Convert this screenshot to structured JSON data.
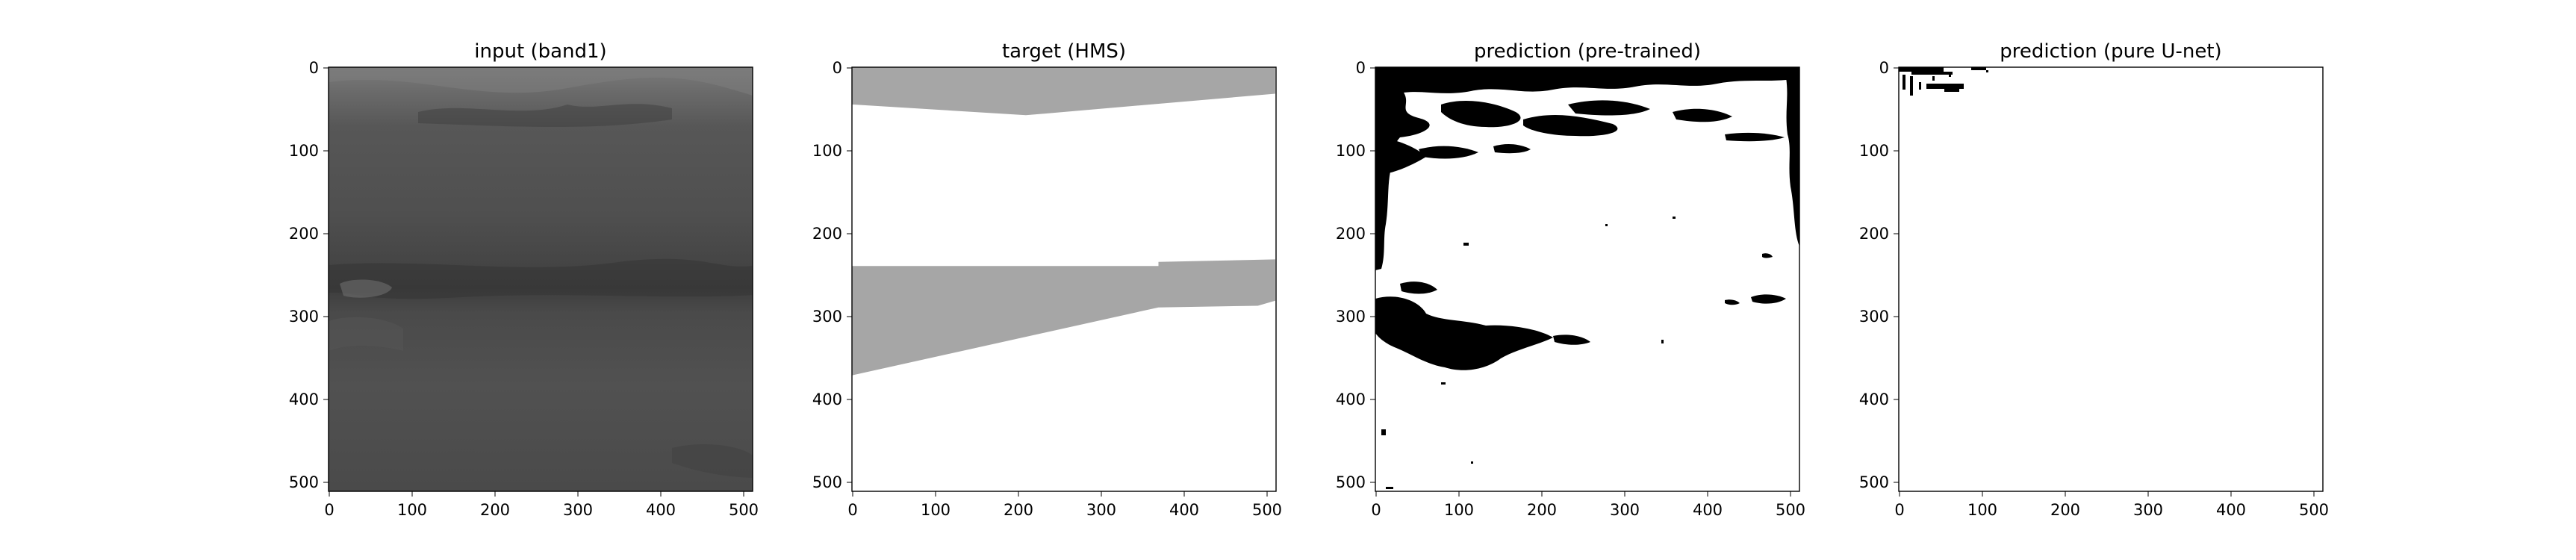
{
  "chart_data": [
    {
      "type": "heatmap",
      "title": "input (band1)",
      "x_ticks": [
        0,
        100,
        200,
        300,
        400,
        500
      ],
      "y_ticks": [
        0,
        100,
        200,
        300,
        400,
        500
      ],
      "xlim": [
        0,
        511
      ],
      "ylim": [
        511,
        0
      ],
      "image": "grayscale satellite band, mid/dark gray with faint darker horizontal band near y 240-270",
      "colormap": "gray"
    },
    {
      "type": "heatmap",
      "title": "target (HMS)",
      "x_ticks": [
        0,
        100,
        200,
        300,
        400,
        500
      ],
      "y_ticks": [
        0,
        100,
        200,
        300,
        400,
        500
      ],
      "xlim": [
        0,
        511
      ],
      "ylim": [
        511,
        0
      ],
      "regions": [
        {
          "value": "smoke",
          "boundary": [
            [
              0,
              0
            ],
            [
              511,
              0
            ],
            [
              511,
              32
            ],
            [
              210,
              58
            ],
            [
              0,
              45
            ]
          ]
        },
        {
          "value": "smoke",
          "boundary": [
            [
              0,
              240
            ],
            [
              370,
              240
            ],
            [
              370,
              235
            ],
            [
              511,
              232
            ],
            [
              511,
              282
            ],
            [
              490,
              288
            ],
            [
              370,
              290
            ],
            [
              0,
              372
            ]
          ]
        }
      ],
      "colors": {
        "smoke": "#a6a6a6",
        "background": "#ffffff"
      }
    },
    {
      "type": "heatmap",
      "title": "prediction (pre-trained)",
      "x_ticks": [
        0,
        100,
        200,
        300,
        400,
        500
      ],
      "y_ticks": [
        0,
        100,
        200,
        300,
        400,
        500
      ],
      "xlim": [
        0,
        511
      ],
      "ylim": [
        511,
        0
      ],
      "image": "binary mask: black predicted smoke along top rows and left edge, blob near y 255-335, scattered specks",
      "colors": {
        "smoke": "#000000",
        "background": "#ffffff"
      }
    },
    {
      "type": "heatmap",
      "title": "prediction (pure U-net)",
      "x_ticks": [
        0,
        100,
        200,
        300,
        400,
        500
      ],
      "y_ticks": [
        0,
        100,
        200,
        300,
        400,
        500
      ],
      "xlim": [
        0,
        511
      ],
      "ylim": [
        511,
        0
      ],
      "image": "binary mask: almost entirely white, small black specks in top-left corner (x 0-120, y 0-30)",
      "colors": {
        "smoke": "#000000",
        "background": "#ffffff"
      }
    }
  ]
}
